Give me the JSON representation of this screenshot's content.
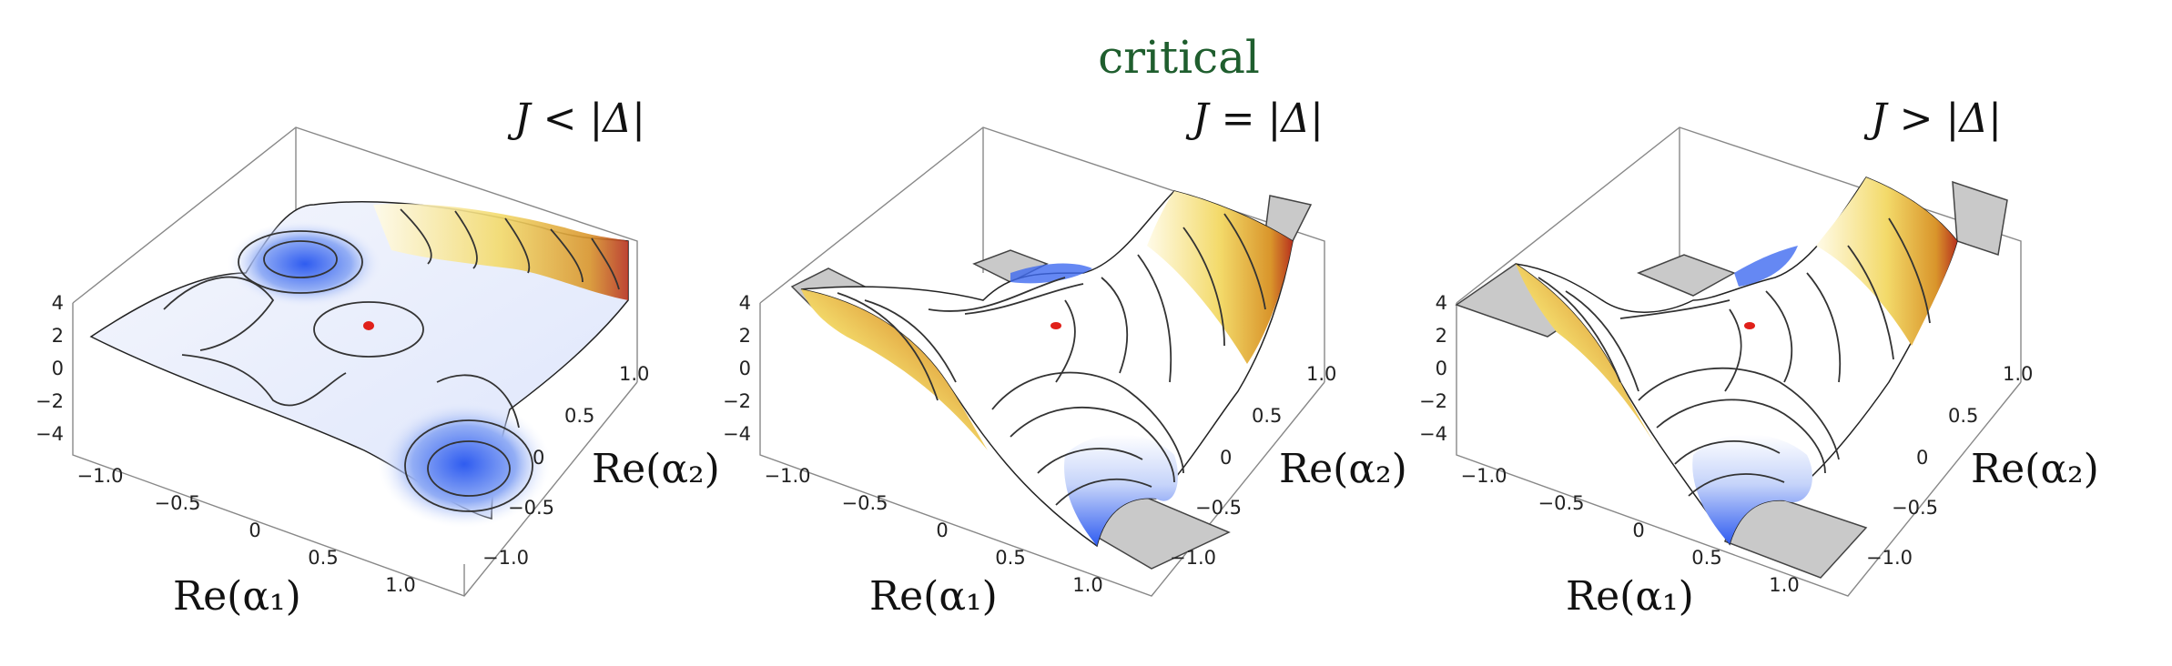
{
  "header": {
    "critical_label": "critical"
  },
  "panels": [
    {
      "id": "p1",
      "condition_label": "J < |Δ|",
      "x_axis_label": "Re(α₁)",
      "y_axis_label": "Re(α₂)",
      "z_ticks": [
        "4",
        "2",
        "0",
        "−2",
        "−4"
      ],
      "x_ticks": [
        "−1.0",
        "−0.5",
        "0",
        "0.5",
        "1.0"
      ],
      "y_ticks": [
        "1.0",
        "0.5",
        "0",
        "−0.5",
        "−1.0"
      ]
    },
    {
      "id": "p2",
      "condition_label": "J = |Δ|",
      "x_axis_label": "Re(α₁)",
      "y_axis_label": "Re(α₂)",
      "z_ticks": [
        "4",
        "2",
        "0",
        "−2",
        "−4"
      ],
      "x_ticks": [
        "−1.0",
        "−0.5",
        "0",
        "0.5",
        "1.0"
      ],
      "y_ticks": [
        "1.0",
        "0.5",
        "0",
        "−0.5",
        "−1.0"
      ]
    },
    {
      "id": "p3",
      "condition_label": "J > |Δ|",
      "x_axis_label": "Re(α₁)",
      "y_axis_label": "Re(α₂)",
      "z_ticks": [
        "4",
        "2",
        "0",
        "−2",
        "−4"
      ],
      "x_ticks": [
        "−1.0",
        "−0.5",
        "0",
        "0.5",
        "1.0"
      ],
      "y_ticks": [
        "1.0",
        "0.5",
        "0",
        "−0.5",
        "−1.0"
      ]
    }
  ],
  "colors": {
    "low": "#2f5cf0",
    "mid": "#ffffff",
    "high": "#f0d24a",
    "peak": "#b8321e",
    "marker": "#e0201a",
    "critical_text": "#1f5e2e"
  }
}
